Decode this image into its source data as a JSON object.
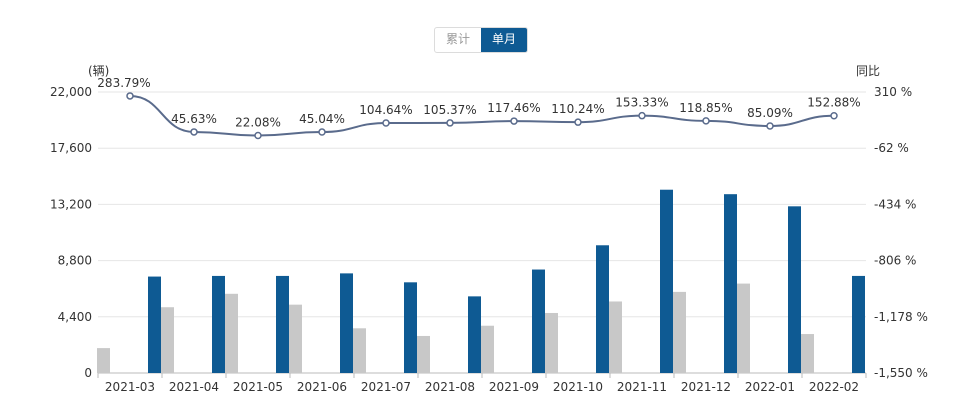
{
  "toggle": {
    "cumulative": "累计",
    "monthly": "单月",
    "active": "monthly"
  },
  "chart_data": {
    "type": "bar+line",
    "left_axis_unit": "(辆)",
    "right_axis_unit": "同比",
    "categories": [
      "2021-03",
      "2021-04",
      "2021-05",
      "2021-06",
      "2021-07",
      "2021-08",
      "2021-09",
      "2021-10",
      "2021-11",
      "2021-12",
      "2022-01",
      "2022-02"
    ],
    "series": [
      {
        "type": "bar",
        "axis": "left",
        "color": "#c8c8c8",
        "values": [
          1950,
          5150,
          6200,
          5350,
          3500,
          2900,
          3700,
          4700,
          5600,
          6350,
          7000,
          3050
        ]
      },
      {
        "type": "bar",
        "axis": "left",
        "color": "#0e5a93",
        "values": [
          7550,
          7600,
          7600,
          7800,
          7100,
          6000,
          8100,
          10000,
          14350,
          14000,
          13050,
          7600
        ]
      },
      {
        "type": "line",
        "axis": "right",
        "color": "#5a6b8c",
        "values": [
          283.79,
          45.63,
          22.08,
          45.04,
          104.64,
          105.37,
          117.46,
          110.24,
          153.33,
          118.85,
          85.09,
          152.88
        ],
        "labels": [
          "283.79%",
          "45.63%",
          "22.08%",
          "45.04%",
          "104.64%",
          "105.37%",
          "117.46%",
          "110.24%",
          "153.33%",
          "118.85%",
          "85.09%",
          "152.88%"
        ]
      }
    ],
    "left_axis": {
      "min": 0,
      "max": 22000,
      "ticks": [
        0,
        4400,
        8800,
        13200,
        17600,
        22000
      ],
      "tick_labels": [
        "0",
        "4,400",
        "8,800",
        "13,200",
        "17,600",
        "22,000"
      ]
    },
    "right_axis": {
      "min": -1550,
      "max": 310,
      "ticks": [
        -1550,
        -1178,
        -806,
        -434,
        -62,
        310
      ],
      "tick_labels": [
        "-1,550 %",
        "-1,178 %",
        "-806 %",
        "-434 %",
        "-62 %",
        "310 %"
      ]
    },
    "grid": true
  }
}
